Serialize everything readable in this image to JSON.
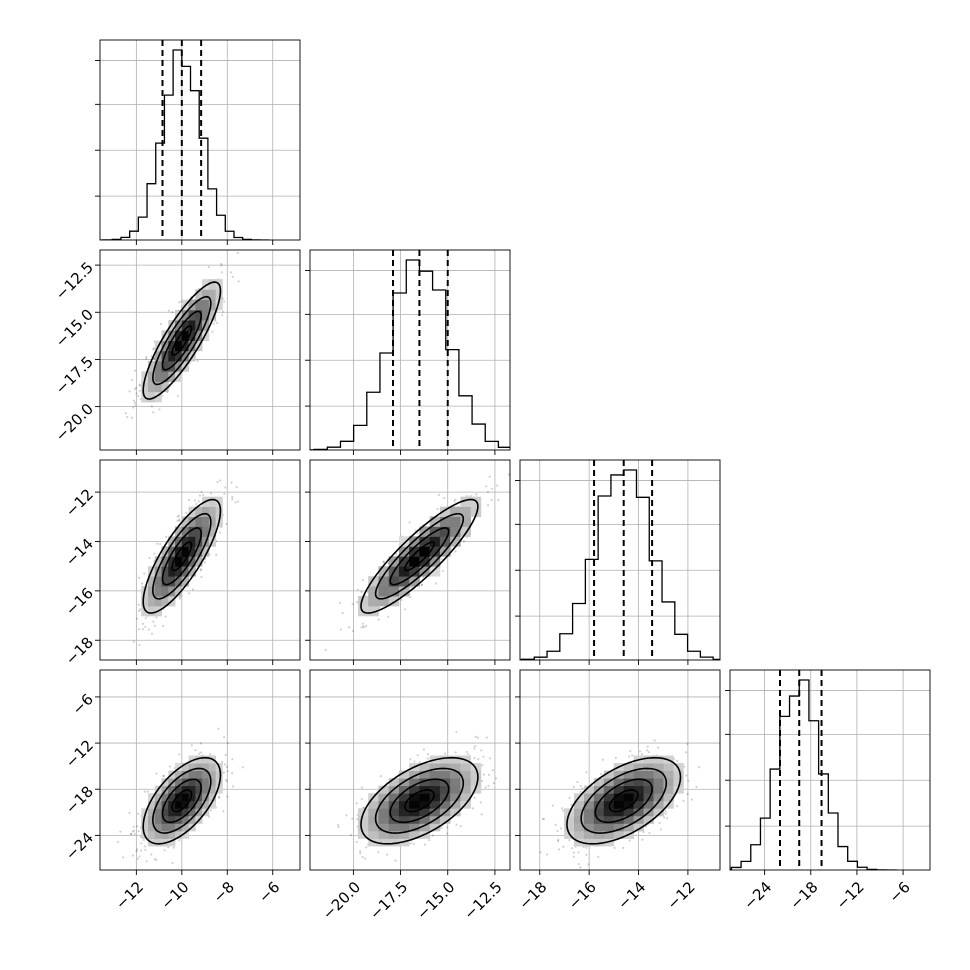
{
  "chart_data": {
    "type": "corner",
    "n_params": 4,
    "title": "",
    "params": [
      {
        "mean": -10.0,
        "sd": 0.85,
        "range": [
          -13.6,
          -4.8
        ],
        "ticks": [
          -12,
          -10,
          -8,
          -6
        ],
        "tick_labels": [
          "−12",
          "−10",
          "−8",
          "−6"
        ],
        "quantiles": [
          -10.85,
          -10.0,
          -9.15
        ]
      },
      {
        "mean": -16.5,
        "sd": 1.55,
        "range": [
          -22.3,
          -11.7
        ],
        "ticks": [
          -20.0,
          -17.5,
          -15.0,
          -12.5
        ],
        "tick_labels": [
          "−20.0",
          "−17.5",
          "−15.0",
          "−12.5"
        ],
        "quantiles": [
          -17.9,
          -16.5,
          -15.0
        ]
      },
      {
        "mean": -14.6,
        "sd": 1.15,
        "range": [
          -18.8,
          -10.7
        ],
        "ticks": [
          -18,
          -16,
          -14,
          -12
        ],
        "tick_labels": [
          "−18",
          "−16",
          "−14",
          "−12"
        ],
        "quantiles": [
          -15.8,
          -14.6,
          -13.45
        ]
      },
      {
        "mean": -19.5,
        "sd": 2.8,
        "range": [
          -28.5,
          -2.5
        ],
        "ticks": [
          -24,
          -18,
          -12,
          -6
        ],
        "tick_labels": [
          "−24",
          "−18",
          "−12",
          "−6"
        ],
        "quantiles": [
          -22.0,
          -19.5,
          -16.6
        ]
      }
    ],
    "correlations": [
      [
        1.0,
        0.85,
        0.8,
        0.6
      ],
      [
        0.85,
        1.0,
        0.88,
        0.55
      ],
      [
        0.8,
        0.88,
        1.0,
        0.55
      ],
      [
        0.6,
        0.55,
        0.55,
        1.0
      ]
    ],
    "contour_levels_sigma": [
      0.5,
      1.0,
      1.5,
      2.0
    ],
    "grid": true,
    "axis_labels": []
  }
}
